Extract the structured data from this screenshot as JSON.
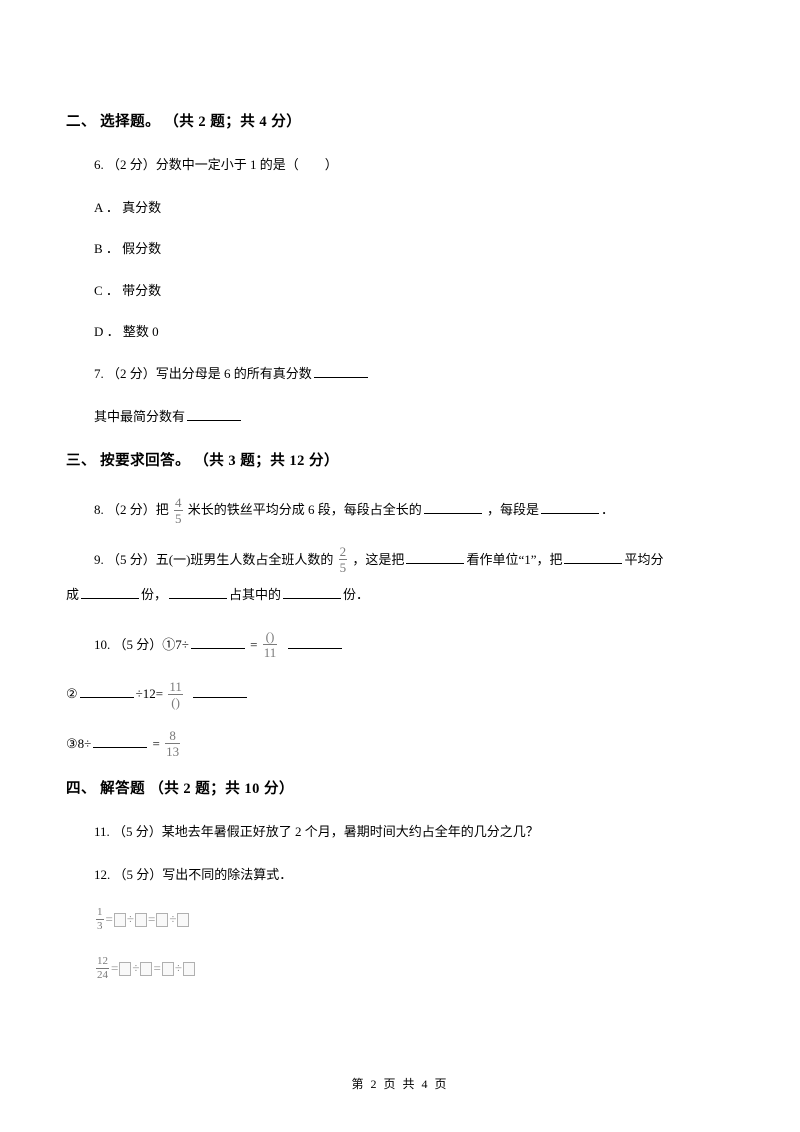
{
  "section2": {
    "heading": "二、 选择题。 （共 2 题；共 4 分）",
    "q6": {
      "stem": "6. （2 分）分数中一定小于 1 的是（　　）",
      "optA": "A ． 真分数",
      "optB": "B ． 假分数",
      "optC": "C ． 带分数",
      "optD": "D ． 整数 0"
    },
    "q7": {
      "line1_pre": "7. （2 分）写出分母是 6 的所有真分数",
      "line2_pre": "其中最简分数有"
    }
  },
  "section3": {
    "heading": "三、 按要求回答。 （共 3 题；共 12 分）",
    "q8": {
      "pre": "8. （2 分）把 ",
      "frac_num": "4",
      "frac_den": "5",
      "mid1": " 米长的铁丝平均分成 6 段，每段占全长的",
      "mid2": " ，每段是",
      "tail": "．"
    },
    "q9": {
      "pre": "9. （5 分）五(一)班男生人数占全班人数的 ",
      "frac_num": "2",
      "frac_den": "5",
      "mid1": " ，这是把",
      "mid2": "看作单位“1”，把",
      "mid3": "平均分",
      "line2_a": "成",
      "line2_b": "份，",
      "line2_c": "占其中的",
      "line2_d": "份．"
    },
    "q10": {
      "line1_pre": "10. （5 分）①7÷",
      "line1_eq": " = ",
      "f1_num": "()",
      "f1_den": "11",
      "line2_pre": "②",
      "line2_mid": "÷12= ",
      "f2_num": "11",
      "f2_den": "()",
      "line3_pre": "③8÷",
      "line3_eq": " = ",
      "f3_num": "8",
      "f3_den": "13"
    }
  },
  "section4": {
    "heading": "四、 解答题 （共 2 题；共 10 分）",
    "q11": "11. （5 分）某地去年暑假正好放了 2 个月，暑期时间大约占全年的几分之几？",
    "q12": {
      "stem": "12. （5 分）写出不同的除法算式．",
      "eq1_frac_num": "1",
      "eq1_frac_den": "3",
      "eq2_frac_num": "12",
      "eq2_frac_den": "24"
    }
  },
  "footer": "第 2 页 共 4 页"
}
